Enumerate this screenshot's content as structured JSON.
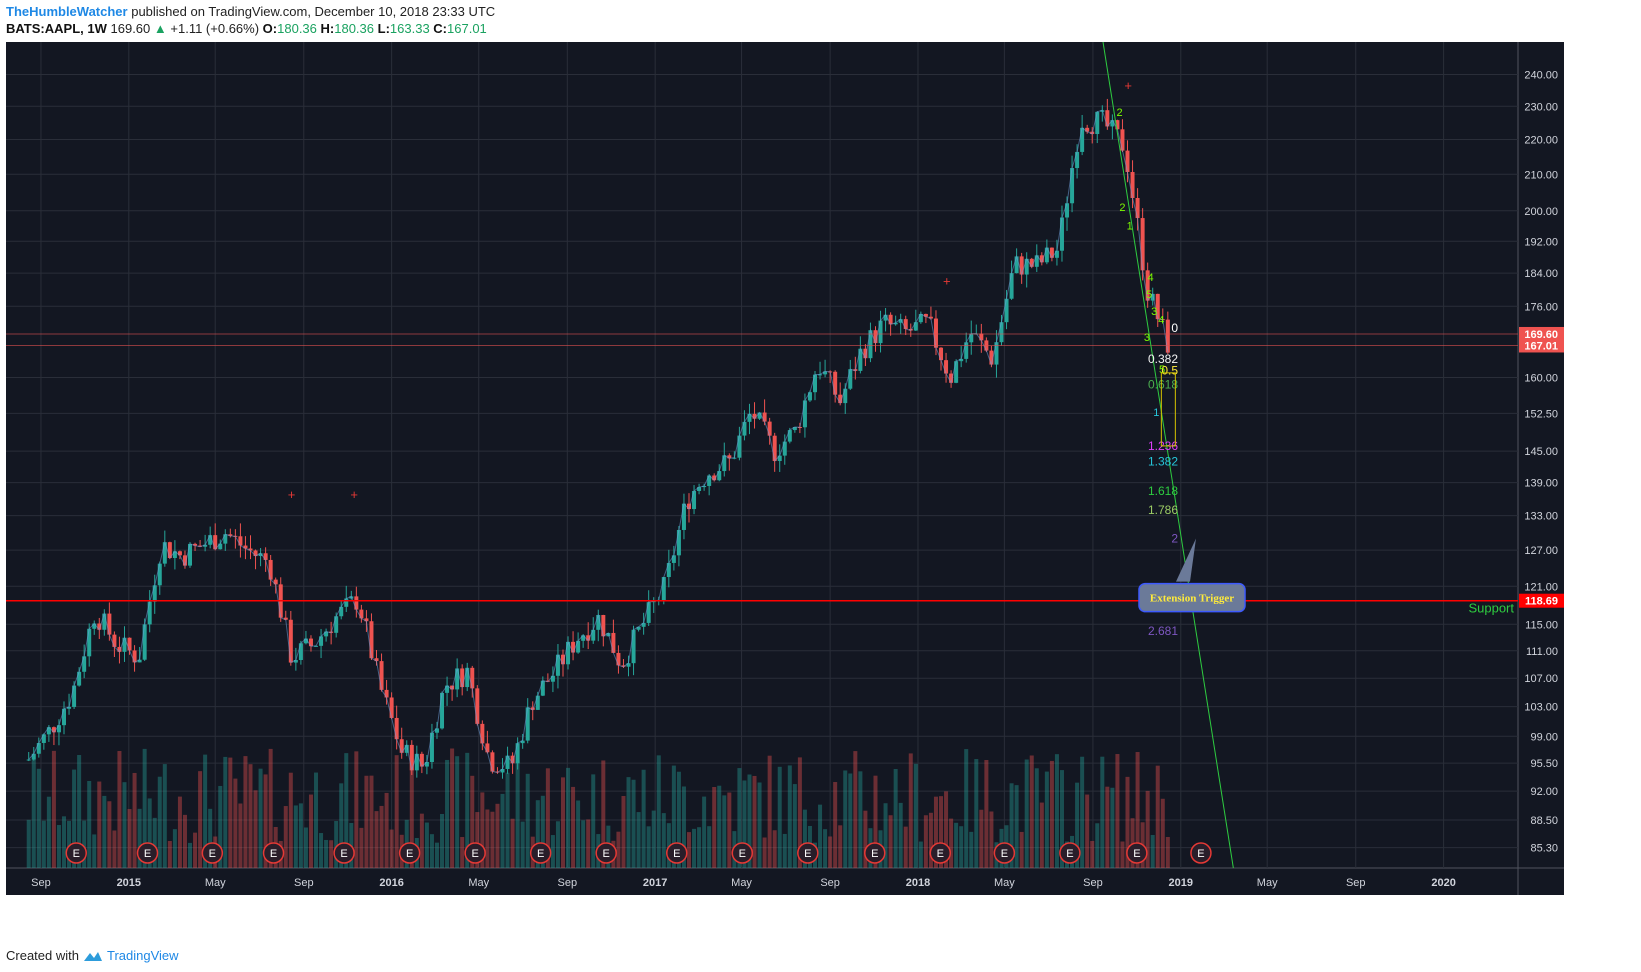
{
  "header": {
    "author": "TheHumbleWatcher",
    "published_text": "published on TradingView.com, December 10, 2018 23:33 UTC",
    "symbol": "BATS:AAPL, 1W",
    "last": "169.60",
    "change": "+1.11 (+0.66%)",
    "o_label": "O:",
    "o": "180.36",
    "h_label": "H:",
    "h": "180.36",
    "l_label": "L:",
    "l": "163.33",
    "c_label": "C:",
    "c": "167.01"
  },
  "footer": {
    "created_with": "Created with",
    "brand": "TradingView"
  },
  "colors": {
    "background": "#131722",
    "up": "#26a69a",
    "down": "#ef5350",
    "support_line": "#ff0000",
    "trend_line": "#2ecc40"
  },
  "chart_data": {
    "type": "candlestick",
    "title": "",
    "y_scale": "log",
    "y_range": [
      83,
      248
    ],
    "y_ticks": [
      "240.00",
      "230.00",
      "220.00",
      "210.00",
      "200.00",
      "192.00",
      "184.00",
      "176.00",
      "169.60",
      "167.01",
      "160.00",
      "152.50",
      "145.00",
      "139.00",
      "133.00",
      "127.00",
      "121.00",
      "118.69",
      "115.00",
      "111.00",
      "107.00",
      "103.00",
      "99.00",
      "95.50",
      "92.00",
      "88.50",
      "85.30"
    ],
    "x_ticks": [
      "Sep",
      "2015",
      "May",
      "Sep",
      "2016",
      "May",
      "Sep",
      "2017",
      "May",
      "Sep",
      "2018",
      "May",
      "Sep",
      "2019",
      "May",
      "Sep",
      "2020"
    ],
    "close_series": [
      {
        "date": "2014-08",
        "value": 96
      },
      {
        "date": "2014-09",
        "value": 100
      },
      {
        "date": "2014-10",
        "value": 105
      },
      {
        "date": "2014-11",
        "value": 117
      },
      {
        "date": "2014-12",
        "value": 112
      },
      {
        "date": "2015-01",
        "value": 110
      },
      {
        "date": "2015-02",
        "value": 128
      },
      {
        "date": "2015-03",
        "value": 126
      },
      {
        "date": "2015-04",
        "value": 128
      },
      {
        "date": "2015-05",
        "value": 130
      },
      {
        "date": "2015-06",
        "value": 127
      },
      {
        "date": "2015-07",
        "value": 125
      },
      {
        "date": "2015-08",
        "value": 110
      },
      {
        "date": "2015-09",
        "value": 112
      },
      {
        "date": "2015-10",
        "value": 116
      },
      {
        "date": "2015-11",
        "value": 119
      },
      {
        "date": "2015-12",
        "value": 106
      },
      {
        "date": "2016-01",
        "value": 97
      },
      {
        "date": "2016-02",
        "value": 95
      },
      {
        "date": "2016-03",
        "value": 106
      },
      {
        "date": "2016-04",
        "value": 108
      },
      {
        "date": "2016-05",
        "value": 96
      },
      {
        "date": "2016-06",
        "value": 95
      },
      {
        "date": "2016-07",
        "value": 104
      },
      {
        "date": "2016-08",
        "value": 108
      },
      {
        "date": "2016-09",
        "value": 113
      },
      {
        "date": "2016-10",
        "value": 116
      },
      {
        "date": "2016-11",
        "value": 109
      },
      {
        "date": "2016-12",
        "value": 115
      },
      {
        "date": "2017-01",
        "value": 121
      },
      {
        "date": "2017-02",
        "value": 136
      },
      {
        "date": "2017-03",
        "value": 141
      },
      {
        "date": "2017-04",
        "value": 143
      },
      {
        "date": "2017-05",
        "value": 153
      },
      {
        "date": "2017-06",
        "value": 145
      },
      {
        "date": "2017-07",
        "value": 149
      },
      {
        "date": "2017-08",
        "value": 163
      },
      {
        "date": "2017-09",
        "value": 155
      },
      {
        "date": "2017-10",
        "value": 166
      },
      {
        "date": "2017-11",
        "value": 172
      },
      {
        "date": "2017-12",
        "value": 170
      },
      {
        "date": "2018-01",
        "value": 172
      },
      {
        "date": "2018-02",
        "value": 160
      },
      {
        "date": "2018-03",
        "value": 170
      },
      {
        "date": "2018-04",
        "value": 164
      },
      {
        "date": "2018-05",
        "value": 186
      },
      {
        "date": "2018-06",
        "value": 186
      },
      {
        "date": "2018-07",
        "value": 190
      },
      {
        "date": "2018-08",
        "value": 226
      },
      {
        "date": "2018-09",
        "value": 225
      },
      {
        "date": "2018-10",
        "value": 218
      },
      {
        "date": "2018-11",
        "value": 180
      },
      {
        "date": "2018-12",
        "value": 167
      }
    ],
    "horizontal_lines": [
      {
        "value": 118.69,
        "label": "118.69",
        "annotation": "Support",
        "color": "#ff0000"
      },
      {
        "value": 167.01,
        "label": "167.01",
        "color": "#e05050"
      },
      {
        "value": 169.6,
        "label": "169.60",
        "color": "#e05050"
      }
    ],
    "fib_levels": [
      {
        "label": "0",
        "value": 171
      },
      {
        "label": "0.382",
        "value": 164
      },
      {
        "label": "0.5",
        "value": 161.5
      },
      {
        "label": "0.618",
        "value": 158.5
      },
      {
        "label": "1.236",
        "value": 146
      },
      {
        "label": "1.382",
        "value": 143
      },
      {
        "label": "1.618",
        "value": 137.5
      },
      {
        "label": "1.786",
        "value": 134
      },
      {
        "label": "2",
        "value": 129
      },
      {
        "label": "2.681",
        "value": 114
      }
    ],
    "wave_labels": [
      "2",
      "1",
      "4",
      "5",
      "3",
      "4",
      "3",
      "5",
      "1",
      "2"
    ],
    "callout": {
      "text": "Extension Trigger",
      "value": 119.5
    },
    "earnings_marker": "E",
    "signal_marker": "+"
  }
}
